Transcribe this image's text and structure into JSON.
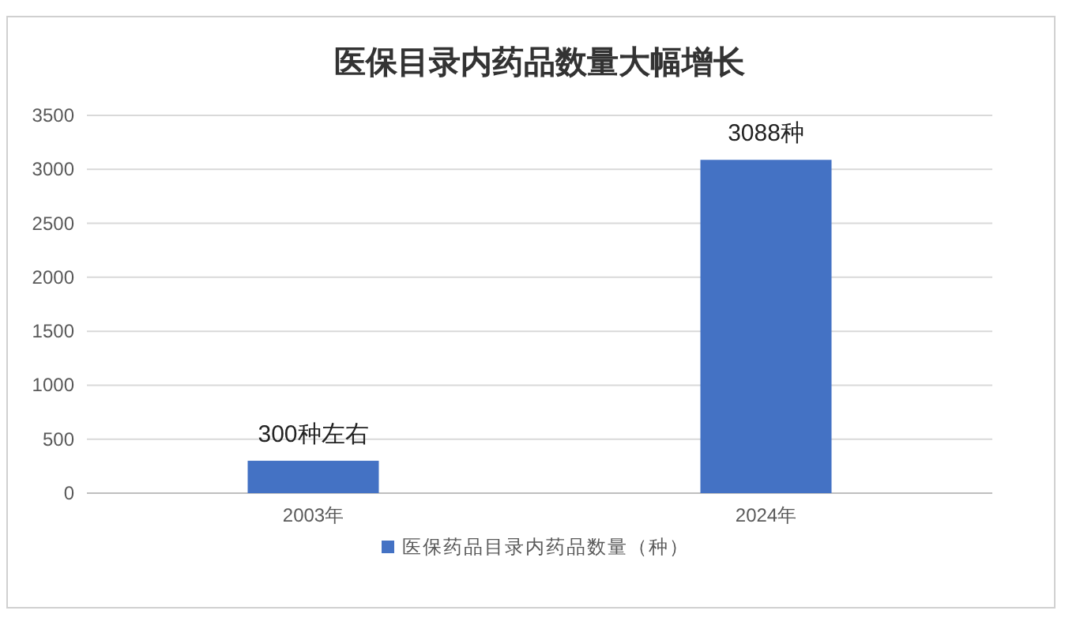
{
  "chart_data": {
    "type": "bar",
    "title": "医保目录内药品数量大幅增长",
    "categories": [
      "2003年",
      "2024年"
    ],
    "series": [
      {
        "name": "医保药品目录内药品数量（种）",
        "color": "#4472c4",
        "values": [
          300,
          3088
        ],
        "value_labels": [
          "300种左右",
          "3088种"
        ]
      }
    ],
    "ylim": [
      0,
      3500
    ],
    "yticks": [
      0,
      500,
      1000,
      1500,
      2000,
      2500,
      3000,
      3500
    ],
    "grid": "y",
    "legend": "bottom"
  }
}
